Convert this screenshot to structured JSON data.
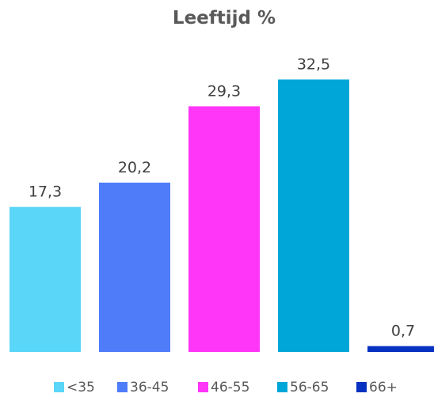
{
  "chart_data": {
    "type": "bar",
    "title": "Leeftijd %",
    "xlabel": "",
    "ylabel": "",
    "ylim": [
      0,
      35
    ],
    "grid": false,
    "legend_position": "bottom",
    "categories": [
      "<35",
      "36-45",
      "46-55",
      "56-65",
      "66+"
    ],
    "values": [
      17.3,
      20.2,
      29.3,
      32.5,
      0.7
    ],
    "value_labels": [
      "17,3",
      "20,2",
      "29,3",
      "32,5",
      "0,7"
    ],
    "colors": [
      "#5ad6f8",
      "#4f7dfa",
      "#ff36f8",
      "#00a6d8",
      "#0731c1"
    ]
  }
}
